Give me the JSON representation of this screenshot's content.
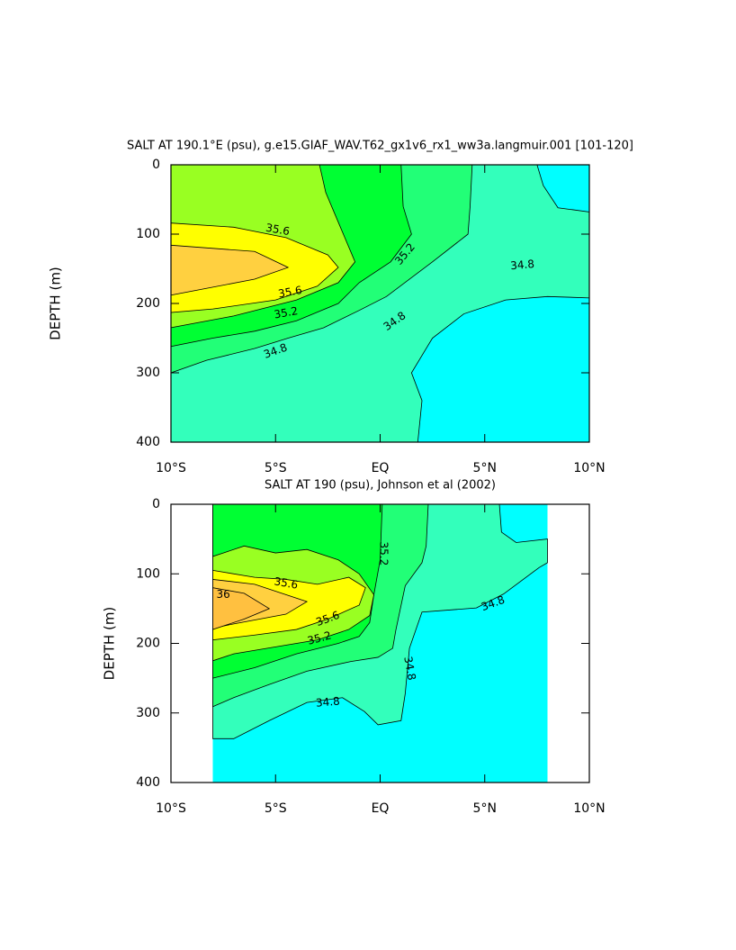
{
  "chart_data": [
    {
      "type": "contour",
      "title": "SALT AT 190.1°E (psu), g.e15.GIAF_WAV.T62_gx1v6_rx1_ww3a.langmuir.001 [101-120]",
      "ylabel": "DEPTH (m)",
      "xlim": [
        -10,
        10
      ],
      "xticks": [
        {
          "value": -10,
          "label": "10°S"
        },
        {
          "value": -5,
          "label": "5°S"
        },
        {
          "value": 0,
          "label": "EQ"
        },
        {
          "value": 5,
          "label": "5°N"
        },
        {
          "value": 10,
          "label": "10°N"
        }
      ],
      "ylim": [
        400,
        0
      ],
      "yticks": [
        0,
        100,
        200,
        300,
        400
      ],
      "levels": [
        34.8,
        35.0,
        35.2,
        35.4,
        35.6,
        35.8,
        36.0
      ],
      "colors": [
        "#00ffff",
        "#33ffbb",
        "#22ff77",
        "#00ff33",
        "#99ff22",
        "#ffff00",
        "#ffd040",
        "#ffc040"
      ],
      "contour_labels": [
        35.6,
        35.6,
        35.2,
        35.2,
        34.8,
        34.8,
        34.8
      ]
    },
    {
      "type": "contour",
      "title": "SALT AT 190 (psu), Johnson et al (2002)",
      "ylabel": "DEPTH (m)",
      "xlim": [
        -10,
        10
      ],
      "xticks": [
        {
          "value": -10,
          "label": "10°S"
        },
        {
          "value": -5,
          "label": "5°S"
        },
        {
          "value": 0,
          "label": "EQ"
        },
        {
          "value": 5,
          "label": "5°N"
        },
        {
          "value": 10,
          "label": "10°N"
        }
      ],
      "ylim": [
        400,
        0
      ],
      "yticks": [
        0,
        100,
        200,
        300,
        400
      ],
      "levels": [
        34.8,
        35.0,
        35.2,
        35.4,
        35.6,
        35.8,
        36.0
      ],
      "colors": [
        "#00ffff",
        "#33ffbb",
        "#22ff77",
        "#00ff33",
        "#99ff22",
        "#ffff00",
        "#ffd040",
        "#ffc040"
      ],
      "contour_labels": [
        35.6,
        36,
        35.6,
        35.2,
        35.2,
        34.8,
        34.8,
        34.8
      ]
    }
  ]
}
